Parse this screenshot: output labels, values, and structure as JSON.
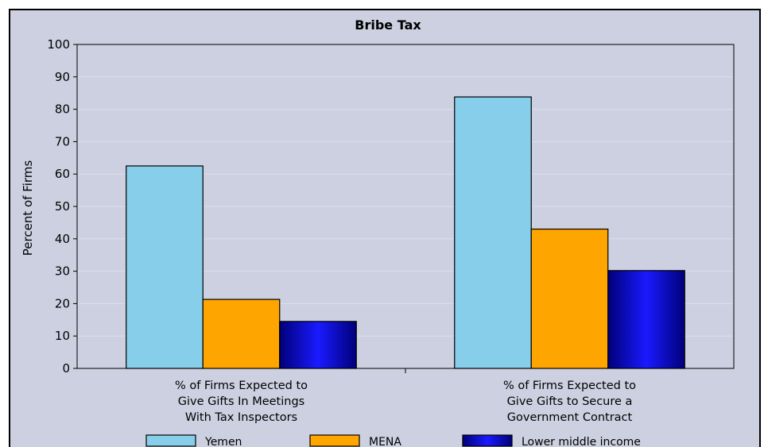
{
  "chart_data": {
    "type": "bar",
    "title": "Bribe Tax",
    "ylabel": "Percent of Firms",
    "ylim": [
      0,
      100
    ],
    "yticks": [
      0,
      10,
      20,
      30,
      40,
      50,
      60,
      70,
      80,
      90,
      100
    ],
    "grid": true,
    "legend_position": "bottom",
    "categories": [
      [
        "% of Firms Expected to",
        "Give Gifts In Meetings",
        "With Tax Inspectors"
      ],
      [
        "% of Firms Expected to",
        "Give Gifts to Secure a",
        "Government Contract"
      ]
    ],
    "series": [
      {
        "name": "Yemen",
        "values": [
          62.5,
          83.8
        ],
        "color": "#87ceeb"
      },
      {
        "name": "MENA",
        "values": [
          21.3,
          43.0
        ],
        "color": "#ffa500"
      },
      {
        "name": "Lower middle income",
        "values": [
          14.5,
          30.2
        ],
        "color": "#0000c8"
      }
    ]
  }
}
